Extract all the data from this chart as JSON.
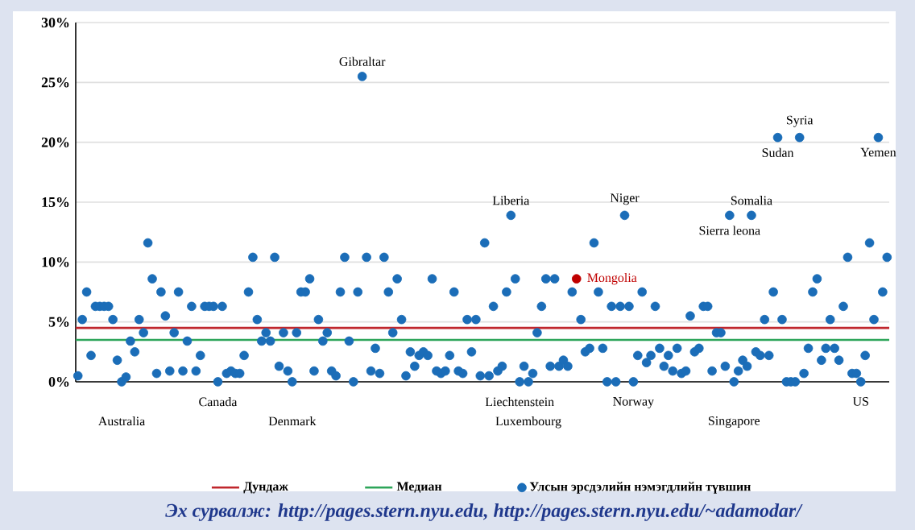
{
  "chart_data": {
    "type": "scatter",
    "categories": [
      null,
      null,
      null,
      null,
      null,
      null,
      null,
      null,
      null,
      null,
      null,
      null,
      null,
      null,
      null,
      null,
      null,
      null,
      null,
      null,
      null,
      null,
      null,
      null,
      null,
      null,
      null,
      null,
      null,
      null,
      null,
      null,
      null,
      null,
      null,
      null,
      null,
      null,
      null,
      null,
      null,
      null,
      null,
      null,
      null,
      null,
      null,
      null,
      null,
      null,
      null,
      null,
      null,
      null,
      null,
      null,
      null,
      null,
      null,
      null,
      null,
      null,
      null,
      null,
      null,
      null,
      null,
      null,
      null,
      null,
      null,
      null,
      null,
      null,
      null,
      null,
      null,
      null,
      null,
      null,
      null,
      null,
      null,
      null,
      null,
      null,
      null,
      null,
      null,
      null,
      null,
      null,
      null,
      null,
      null,
      null,
      null,
      null,
      null,
      null,
      null,
      null,
      null,
      null,
      null,
      null,
      null,
      null,
      null,
      null,
      null,
      null,
      null,
      null,
      null,
      null,
      null,
      null,
      null,
      null,
      null,
      null,
      null,
      null,
      null,
      null,
      null,
      null,
      null,
      null,
      null,
      null,
      null,
      null,
      null,
      null,
      null,
      null,
      null,
      null,
      null,
      null,
      null,
      null,
      null,
      null,
      null,
      null,
      null,
      null,
      null,
      null,
      null,
      null,
      null,
      null,
      null,
      null,
      null,
      null,
      null,
      null,
      null,
      null,
      null,
      null,
      null,
      null,
      null,
      null,
      null,
      null,
      null,
      null,
      null,
      null,
      null,
      null,
      null,
      null,
      null,
      null,
      null,
      null,
      null,
      null
    ],
    "series": [
      {
        "name": "Улсын эрсдэлийн нэмэгдлийн түвшин",
        "color": "#1b6db8",
        "values": [
          0.5,
          5.2,
          7.5,
          2.2,
          6.3,
          6.3,
          6.3,
          6.3,
          5.2,
          1.8,
          0,
          0.4,
          3.4,
          2.5,
          5.2,
          4.1,
          11.6,
          8.6,
          0.7,
          7.5,
          5.5,
          0.9,
          4.1,
          7.5,
          0.9,
          3.4,
          6.3,
          0.9,
          2.2,
          6.3,
          6.3,
          6.3,
          0,
          6.3,
          0.7,
          0.9,
          0.7,
          0.7,
          2.2,
          7.5,
          10.4,
          5.2,
          3.4,
          4.1,
          3.4,
          10.4,
          1.3,
          4.1,
          0.9,
          0,
          4.1,
          7.5,
          7.5,
          8.6,
          0.9,
          5.2,
          3.4,
          4.1,
          0.9,
          0.5,
          7.5,
          10.4,
          3.4,
          0,
          7.5,
          25.5,
          10.4,
          0.9,
          2.8,
          0.7,
          10.4,
          7.5,
          4.1,
          8.6,
          5.2,
          0.5,
          2.5,
          1.3,
          2.2,
          2.5,
          2.2,
          8.6,
          0.9,
          0.7,
          0.9,
          2.2,
          7.5,
          0.9,
          0.7,
          5.2,
          2.5,
          5.2,
          0.5,
          11.6,
          0.5,
          6.3,
          0.9,
          1.3,
          7.5,
          13.9,
          8.6,
          0,
          1.3,
          0,
          0.7,
          4.1,
          6.3,
          8.6,
          1.3,
          8.6,
          1.3,
          1.8,
          1.3,
          7.5,
          null,
          5.2,
          2.5,
          2.8,
          11.6,
          7.5,
          2.8,
          0,
          6.3,
          0,
          6.3,
          13.9,
          6.3,
          0,
          2.2,
          7.5,
          1.6,
          2.2,
          6.3,
          2.8,
          1.3,
          2.2,
          0.9,
          2.8,
          0.7,
          0.9,
          5.5,
          2.5,
          2.8,
          6.3,
          6.3,
          0.9,
          4.1,
          4.1,
          1.3,
          13.9,
          0,
          0.9,
          1.8,
          1.3,
          13.9,
          2.5,
          2.2,
          5.2,
          2.2,
          7.5,
          20.4,
          5.2,
          0,
          0,
          0,
          20.4,
          0.7,
          2.8,
          7.5,
          8.6,
          1.8,
          2.8,
          5.2,
          2.8,
          1.8,
          6.3,
          10.4,
          0.7,
          0.7,
          0,
          2.2,
          11.6,
          5.2,
          20.4,
          7.5,
          10.4
        ]
      },
      {
        "name": "Mongolia",
        "color": "#c00000",
        "values": [
          null,
          null,
          null,
          null,
          null,
          null,
          null,
          null,
          null,
          null,
          null,
          null,
          null,
          null,
          null,
          null,
          null,
          null,
          null,
          null,
          null,
          null,
          null,
          null,
          null,
          null,
          null,
          null,
          null,
          null,
          null,
          null,
          null,
          null,
          null,
          null,
          null,
          null,
          null,
          null,
          null,
          null,
          null,
          null,
          null,
          null,
          null,
          null,
          null,
          null,
          null,
          null,
          null,
          null,
          null,
          null,
          null,
          null,
          null,
          null,
          null,
          null,
          null,
          null,
          null,
          null,
          null,
          null,
          null,
          null,
          null,
          null,
          null,
          null,
          null,
          null,
          null,
          null,
          null,
          null,
          null,
          null,
          null,
          null,
          null,
          null,
          null,
          null,
          null,
          null,
          null,
          null,
          null,
          null,
          null,
          null,
          null,
          null,
          null,
          null,
          null,
          null,
          null,
          null,
          null,
          null,
          null,
          null,
          null,
          null,
          null,
          null,
          null,
          null,
          8.6,
          null,
          null,
          null,
          null,
          null,
          null,
          null,
          null,
          null,
          null,
          null,
          null,
          null,
          null,
          null,
          null,
          null,
          null,
          null,
          null,
          null,
          null,
          null,
          null,
          null,
          null,
          null,
          null,
          null,
          null,
          null,
          null,
          null,
          null,
          null,
          null,
          null,
          null,
          null,
          null,
          null,
          null,
          null,
          null,
          null,
          null,
          null,
          null,
          null,
          null,
          null,
          null,
          null,
          null,
          null,
          null,
          null,
          null,
          null,
          null,
          null,
          null,
          null,
          null,
          null,
          null,
          null,
          null,
          null,
          null,
          null
        ]
      }
    ],
    "ref_lines": [
      {
        "axis": "y",
        "value": 4.5,
        "label": "Дундаж",
        "color": "#c0272d",
        "line_style": "solid"
      },
      {
        "axis": "y",
        "value": 3.5,
        "label": "Медиан",
        "color": "#2ea55a",
        "line_style": "solid"
      }
    ],
    "ylim": [
      0,
      30
    ],
    "yticks": [
      {
        "value": 0,
        "label": "0%"
      },
      {
        "value": 5,
        "label": "5%"
      },
      {
        "value": 10,
        "label": "10%"
      },
      {
        "value": 15,
        "label": "15%"
      },
      {
        "value": 20,
        "label": "20%"
      },
      {
        "value": 25,
        "label": "25%"
      },
      {
        "value": 30,
        "label": "30%"
      }
    ],
    "grid": "y",
    "legend": "bottom",
    "marker": "circle",
    "annotations": [
      "Эх сурвалж: http://pages.stern.nyu.edu, http://pages.stern.nyu.edu/~adamodar/",
      {
        "text": "Australia",
        "y": 0
      },
      {
        "text": "Canada",
        "y": 0
      },
      {
        "text": "Denmark",
        "y": 0
      },
      {
        "text": "Gibraltar",
        "y": 25.5
      },
      {
        "text": "Liberia",
        "y": 13.9
      },
      {
        "text": "Liechtenstein",
        "y": 0
      },
      {
        "text": "Luxembourg",
        "y": 0
      },
      {
        "text": "Niger",
        "y": 13.9
      },
      {
        "text": "Norway",
        "y": 0
      },
      {
        "text": "Sierra leona",
        "y": 13.9
      },
      {
        "text": "Singapore",
        "y": 0
      },
      {
        "text": "Somalia",
        "y": 13.9
      },
      {
        "text": "Sudan",
        "y": 20.4
      },
      {
        "text": "Syria",
        "y": 20.4
      },
      {
        "text": "US",
        "y": 0
      },
      {
        "text": "Yemen",
        "y": 20.4
      }
    ]
  }
}
